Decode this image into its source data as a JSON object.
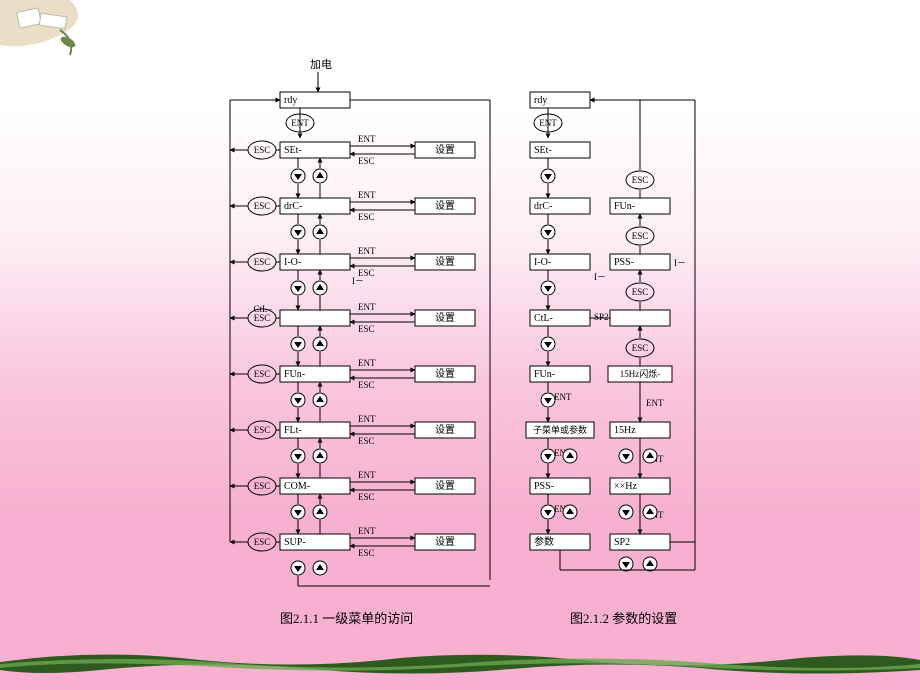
{
  "style": {
    "box_stroke": "#000000",
    "box_fill": "#ffffff",
    "box_stroke_width": 1,
    "line_stroke": "#000000",
    "line_stroke_width": 1,
    "text_color": "#000000",
    "label_fontsize": 10,
    "box_fontsize": 10,
    "caption_fontsize": 13,
    "circle_btn_r": 7,
    "circle_btn_stroke": "#000000",
    "circle_btn_fill": "#ffffff",
    "triangle_fill": "#000000",
    "bg_gradient_top": "#ffffff",
    "bg_gradient_bottom": "#f7b0cf",
    "deco_green_dark": "#2e5a1f",
    "deco_green_light": "#6aa84f",
    "deco_beige": "#e8dcc0"
  },
  "left": {
    "top_label": "加电",
    "rdy_label": "rdy",
    "ent_label": "ENT",
    "esc_label": "ESC",
    "setting_label": "设置",
    "extra_ctl_label": "CtL–",
    "extra_io_label": "I－",
    "rows": [
      {
        "name": "SEt-"
      },
      {
        "name": "drC-"
      },
      {
        "name": "I-O-"
      },
      {
        "name": ""
      },
      {
        "name": "FUn-"
      },
      {
        "name": "FLt-"
      },
      {
        "name": "COM-"
      },
      {
        "name": "SUP-"
      }
    ],
    "caption": "图2.1.1  一级菜单的访问"
  },
  "right": {
    "rdy_label": "rdy",
    "ent_label": "ENT",
    "esc_label": "ESC",
    "sp2_label": "SP2",
    "extra_io_label": "I－",
    "left_col": [
      "SEt-",
      "drC-",
      "I-O-",
      "CtL-",
      "FUn-",
      "子菜单或参数",
      "PSS-",
      "参数"
    ],
    "right_col_top": [
      "FUn-",
      "PSS-",
      ""
    ],
    "right_col_bottom": [
      "15Hz闪烁-",
      "15Hz",
      "××Hz",
      "SP2"
    ],
    "caption": "图2.1.2  参数的设置"
  }
}
